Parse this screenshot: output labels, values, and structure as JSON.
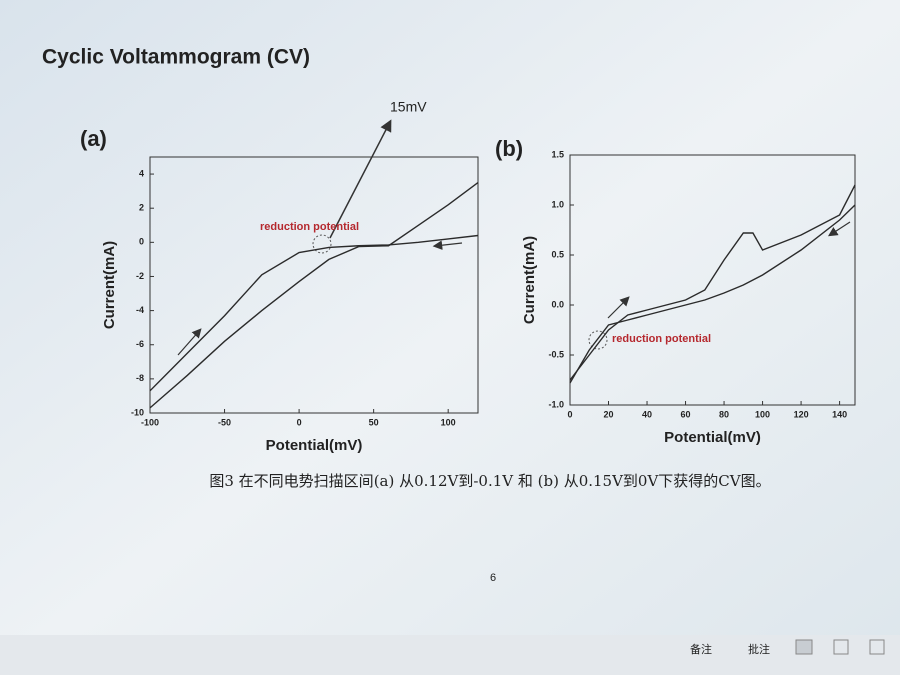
{
  "slide": {
    "title": "Cyclic Voltammogram (CV)",
    "caption": "图3 在不同电势扫描区间(a) 从0.12V到-0.1V 和 (b) 从0.15V到0V下获得的CV图。",
    "page_number": "6"
  },
  "status_bar": {
    "notes": "备注",
    "comments": "批注"
  },
  "chart_data": [
    {
      "type": "line",
      "panel": "(a)",
      "xlabel": "Potential(mV)",
      "ylabel": "Current(mA)",
      "annotations": [
        "15mV",
        "reduction potential"
      ],
      "x": [
        -100,
        -75,
        -50,
        -25,
        0,
        20,
        40,
        60,
        80,
        100,
        120
      ],
      "series": [
        {
          "color": "#2b2b2b",
          "values": [
            -8.7,
            -6.5,
            -4.3,
            -1.9,
            -0.6,
            -0.3,
            -0.2,
            -0.15,
            0,
            0.2,
            0.4
          ]
        },
        {
          "color": "#2b2b2b",
          "values": [
            -9.7,
            -7.8,
            -5.8,
            -4.0,
            -2.3,
            -1.0,
            -0.25,
            -0.2,
            1.0,
            2.2,
            3.5
          ]
        }
      ],
      "xlim": [
        -100,
        120
      ],
      "xticks": [
        -100,
        -50,
        0,
        50,
        100
      ],
      "ylim": [
        -10,
        5
      ],
      "yticks": [
        -10,
        -8,
        -6,
        -4,
        -2,
        0,
        2,
        4
      ]
    },
    {
      "type": "line",
      "panel": "(b)",
      "xlabel": "Potential(mV)",
      "ylabel": "Current(mA)",
      "annotations": [
        "reduction potential"
      ],
      "x": [
        0,
        10,
        20,
        30,
        40,
        60,
        70,
        80,
        90,
        95,
        100,
        120,
        140,
        148
      ],
      "series": [
        {
          "color": "#2b2b2b",
          "values": [
            -0.75,
            -0.5,
            -0.25,
            -0.1,
            -0.05,
            0.05,
            0.15,
            0.45,
            0.72,
            0.72,
            0.55,
            0.7,
            0.9,
            1.2
          ]
        },
        {
          "color": "#2b2b2b",
          "values": [
            -0.78,
            -0.45,
            -0.2,
            -0.15,
            -0.1,
            0.0,
            0.05,
            0.12,
            0.2,
            0.25,
            0.3,
            0.55,
            0.85,
            1.0
          ]
        }
      ],
      "xlim": [
        0,
        148
      ],
      "xticks": [
        0,
        20,
        40,
        60,
        80,
        100,
        120,
        140
      ],
      "ylim": [
        -1,
        1.5
      ],
      "yticks": [
        {
          "value": -1,
          "label": "-1.0"
        },
        -0.5,
        {
          "value": 0,
          "label": "0.0"
        },
        0.5,
        {
          "value": 1,
          "label": "1.0"
        },
        1.5
      ]
    }
  ]
}
